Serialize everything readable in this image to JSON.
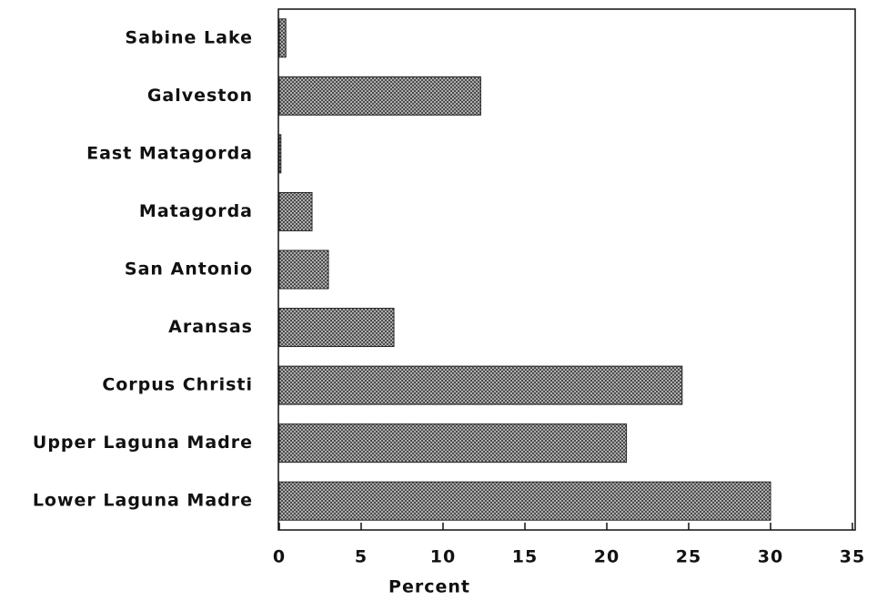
{
  "chart_data": {
    "type": "bar",
    "orientation": "horizontal",
    "categories": [
      "Sabine Lake",
      "Galveston",
      "East Matagorda",
      "Matagorda",
      "San Antonio",
      "Aransas",
      "Corpus Christi",
      "Upper Laguna Madre",
      "Lower Laguna Madre"
    ],
    "values": [
      0.4,
      12.3,
      0.1,
      2.0,
      3.0,
      7.0,
      24.6,
      21.2,
      30.0
    ],
    "color": "#8a8a8a",
    "xlabel": "Percent",
    "xlim": [
      0,
      35
    ],
    "xticks": [
      0,
      5,
      10,
      15,
      20,
      25,
      30,
      35
    ]
  }
}
